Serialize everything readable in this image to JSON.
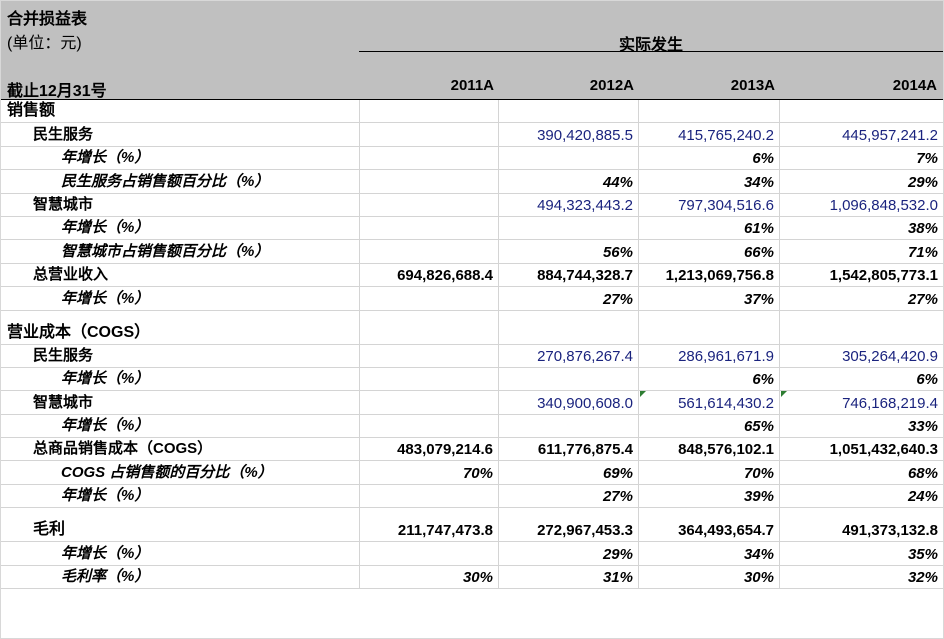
{
  "header": {
    "title": "合并损益表",
    "unit": "(单位：元)",
    "actual": "实际发生",
    "as_of": "截止12月31号",
    "years": [
      "2011A",
      "2012A",
      "2013A",
      "2014A"
    ]
  },
  "rows": [
    {
      "label": "销售额",
      "level": "lvl0",
      "cells": [
        "",
        "",
        "",
        ""
      ],
      "style": ""
    },
    {
      "label": "民生服务",
      "level": "lvl1",
      "cells": [
        "",
        "390,420,885.5",
        "415,765,240.2",
        "445,957,241.2"
      ],
      "style": "blue"
    },
    {
      "label": "年增长（%）",
      "level": "lvl2",
      "cells": [
        "",
        "",
        "6%",
        "7%"
      ],
      "style": "pct"
    },
    {
      "label": "民生服务占销售额百分比（%）",
      "level": "lvl2",
      "cells": [
        "",
        "44%",
        "34%",
        "29%"
      ],
      "style": "pct"
    },
    {
      "label": "智慧城市",
      "level": "lvl1",
      "cells": [
        "",
        "494,323,443.2",
        "797,304,516.6",
        "1,096,848,532.0"
      ],
      "style": "blue"
    },
    {
      "label": "年增长（%）",
      "level": "lvl2",
      "cells": [
        "",
        "",
        "61%",
        "38%"
      ],
      "style": "pct"
    },
    {
      "label": "智慧城市占销售额百分比（%）",
      "level": "lvl2",
      "cells": [
        "",
        "56%",
        "66%",
        "71%"
      ],
      "style": "pct"
    },
    {
      "label": "总营业收入",
      "level": "lvl1",
      "cells": [
        "694,826,688.4",
        "884,744,328.7",
        "1,213,069,756.8",
        "1,542,805,773.1"
      ],
      "style": "bold"
    },
    {
      "label": "年增长（%）",
      "level": "lvl2",
      "cells": [
        "",
        "27%",
        "37%",
        "27%"
      ],
      "style": "pct"
    },
    {
      "label": "营业成本（COGS）",
      "level": "lvl0",
      "cells": [
        "",
        "",
        "",
        ""
      ],
      "style": "",
      "tall": true
    },
    {
      "label": "民生服务",
      "level": "lvl1",
      "cells": [
        "",
        "270,876,267.4",
        "286,961,671.9",
        "305,264,420.9"
      ],
      "style": "blue"
    },
    {
      "label": "年增长（%）",
      "level": "lvl2",
      "cells": [
        "",
        "",
        "6%",
        "6%"
      ],
      "style": "pct"
    },
    {
      "label": "智慧城市",
      "level": "lvl1",
      "cells": [
        "",
        "340,900,608.0",
        "561,614,430.2",
        "746,168,219.4"
      ],
      "style": "blue",
      "flag": true
    },
    {
      "label": "年增长（%）",
      "level": "lvl2",
      "cells": [
        "",
        "",
        "65%",
        "33%"
      ],
      "style": "pct"
    },
    {
      "label": "总商品销售成本（COGS）",
      "level": "lvl1",
      "cells": [
        "483,079,214.6",
        "611,776,875.4",
        "848,576,102.1",
        "1,051,432,640.3"
      ],
      "style": "bold"
    },
    {
      "label": "COGS 占销售额的百分比（%）",
      "level": "lvl2",
      "cells": [
        "70%",
        "69%",
        "70%",
        "68%"
      ],
      "style": "pct"
    },
    {
      "label": "年增长（%）",
      "level": "lvl2",
      "cells": [
        "",
        "27%",
        "39%",
        "24%"
      ],
      "style": "pct"
    },
    {
      "label": "毛利",
      "level": "lvl1t",
      "cells": [
        "211,747,473.8",
        "272,967,453.3",
        "364,493,654.7",
        "491,373,132.8"
      ],
      "style": "bold",
      "tall": true
    },
    {
      "label": "年增长（%）",
      "level": "lvl2",
      "cells": [
        "",
        "29%",
        "34%",
        "35%"
      ],
      "style": "pct"
    },
    {
      "label": "毛利率（%）",
      "level": "lvl2",
      "cells": [
        "30%",
        "31%",
        "30%",
        "32%"
      ],
      "style": "pct"
    }
  ]
}
